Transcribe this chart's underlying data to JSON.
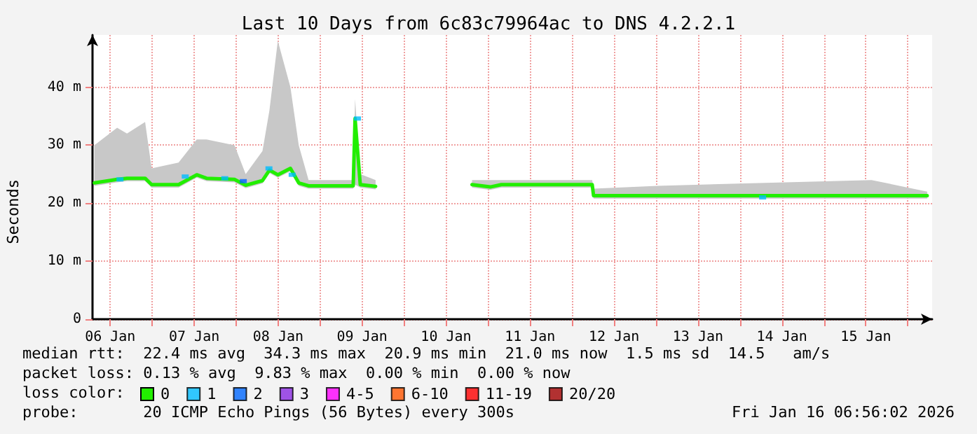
{
  "chart_data": {
    "type": "line",
    "title": "Last 10 Days from 6c83c79964ac to DNS 4.2.2.1",
    "ylabel": "Seconds",
    "xlim": [
      "2026-01-06T06:56",
      "2026-01-16T06:56"
    ],
    "xticks": [
      {
        "value": "2026-01-06T12:00",
        "label": "06 Jan"
      },
      {
        "value": "2026-01-07T00:00",
        "label": null
      },
      {
        "value": "2026-01-07T12:00",
        "label": "07 Jan"
      },
      {
        "value": "2026-01-08T00:00",
        "label": null
      },
      {
        "value": "2026-01-08T12:00",
        "label": "08 Jan"
      },
      {
        "value": "2026-01-09T00:00",
        "label": null
      },
      {
        "value": "2026-01-09T12:00",
        "label": "09 Jan"
      },
      {
        "value": "2026-01-10T00:00",
        "label": null
      },
      {
        "value": "2026-01-10T12:00",
        "label": "10 Jan"
      },
      {
        "value": "2026-01-11T00:00",
        "label": null
      },
      {
        "value": "2026-01-11T12:00",
        "label": "11 Jan"
      },
      {
        "value": "2026-01-12T00:00",
        "label": null
      },
      {
        "value": "2026-01-12T12:00",
        "label": "12 Jan"
      },
      {
        "value": "2026-01-13T00:00",
        "label": null
      },
      {
        "value": "2026-01-13T12:00",
        "label": "13 Jan"
      },
      {
        "value": "2026-01-14T00:00",
        "label": null
      },
      {
        "value": "2026-01-14T12:00",
        "label": "14 Jan"
      },
      {
        "value": "2026-01-15T00:00",
        "label": null
      },
      {
        "value": "2026-01-15T12:00",
        "label": "15 Jan"
      },
      {
        "value": "2026-01-16T00:00",
        "label": null
      }
    ],
    "ylim": [
      0,
      49
    ],
    "yticks": [
      0,
      {
        "value": 10,
        "label": "10 m"
      },
      {
        "value": 20,
        "label": "20 m"
      },
      {
        "value": 30,
        "label": "30 m"
      },
      {
        "value": 40,
        "label": "40 m"
      }
    ],
    "grid": true,
    "legend": "bottom left",
    "legend_title": "loss color:",
    "line_style": "solid",
    "series": [
      {
        "name": "0",
        "color": "#22ee00",
        "marker": "none",
        "x": [
          "2026-01-06T07:28",
          "2026-01-06T13:58",
          "2026-01-06T16:47",
          "2026-01-06T21:58",
          "2026-01-06T23:50",
          "2026-01-07T07:32",
          "2026-01-07T12:44",
          "2026-01-07T15:32",
          "2026-01-07T23:31",
          "2026-01-08T02:43",
          "2026-01-08T07:31",
          "2026-01-08T09:30",
          "2026-01-08T11:54",
          "2026-01-08T15:30",
          "2026-01-08T17:53",
          "2026-01-08T20:41",
          "2026-01-09T09:27",
          "2026-01-09T09:59",
          "2026-01-09T11:28",
          "2026-01-09T15:51",
          "2026-01-10T00:00",
          "2026-01-10T19:25",
          "2026-01-11T00:36",
          "2026-01-11T03:48",
          "2026-01-12T05:46",
          "2026-01-12T06:09",
          "2026-01-13T00:31",
          "2026-01-15T13:37",
          "2026-01-16T05:31"
        ],
        "values": [
          23.5,
          24.1,
          24.3,
          24.3,
          23.2,
          23.2,
          24.9,
          24.3,
          24.1,
          23.1,
          23.9,
          25.7,
          24.9,
          26.0,
          23.5,
          23.0,
          23.0,
          34.6,
          23.2,
          22.9,
          null,
          23.2,
          22.8,
          23.2,
          23.2,
          21.3,
          21.3,
          21.3,
          21.3
        ],
        "lower": [
          23,
          23.6,
          23.8,
          23.8,
          22.7,
          22.7,
          24.4,
          23.8,
          23.6,
          22.6,
          23.4,
          25.2,
          24.4,
          25.5,
          23,
          22.5,
          22.5,
          23.2,
          22.7,
          22.4,
          null,
          22.7,
          22.3,
          22.7,
          22.7,
          20.8,
          20.8,
          20.8,
          20.8
        ],
        "upper": [
          30,
          33,
          32,
          34,
          26,
          27,
          31,
          31,
          30,
          25,
          29,
          36,
          48,
          40,
          30,
          24,
          24,
          38,
          25,
          24,
          null,
          24,
          24,
          24,
          24,
          22.5,
          23,
          24,
          22
        ]
      },
      {
        "name": "1",
        "color": "#00bbff",
        "type": "scatter",
        "marker": "square",
        "x": [
          "2026-01-06T14:47",
          "2026-01-07T09:26",
          "2026-01-07T20:44",
          "2026-01-08T09:22",
          "2026-01-08T16:00",
          "2026-01-09T10:40",
          "2026-01-14T06:29"
        ],
        "values": [
          24.1,
          24.6,
          24.3,
          26.0,
          24.9,
          34.6,
          21.0
        ]
      },
      {
        "name": "2",
        "color": "#0066ff",
        "type": "scatter",
        "marker": "square",
        "x": [
          "2026-01-08T02:02"
        ],
        "values": [
          23.8
        ]
      },
      {
        "name": "3",
        "color": "#8a2be2",
        "type": "scatter",
        "marker": "square"
      },
      {
        "name": "4-5",
        "color": "#ff00ff",
        "type": "scatter",
        "marker": "square"
      },
      {
        "name": "6-10",
        "color": "#ff5500",
        "type": "scatter",
        "marker": "square"
      },
      {
        "name": "11-19",
        "color": "#ff0000",
        "type": "scatter",
        "marker": "square"
      },
      {
        "name": "20/20",
        "color": "#a10000",
        "type": "scatter",
        "marker": "square"
      }
    ],
    "annotations": [
      "median rtt:  22.4 ms avg  34.3 ms max  20.9 ms min  21.0 ms now  1.5 ms sd  14.5   am/s",
      "packet loss: 0.13 % avg  9.83 % max  0.00 % min  0.00 % now",
      "probe:       20 ICMP Echo Pings (56 Bytes) every 300s",
      "Fri Jan 16 06:56:02 2026"
    ]
  }
}
